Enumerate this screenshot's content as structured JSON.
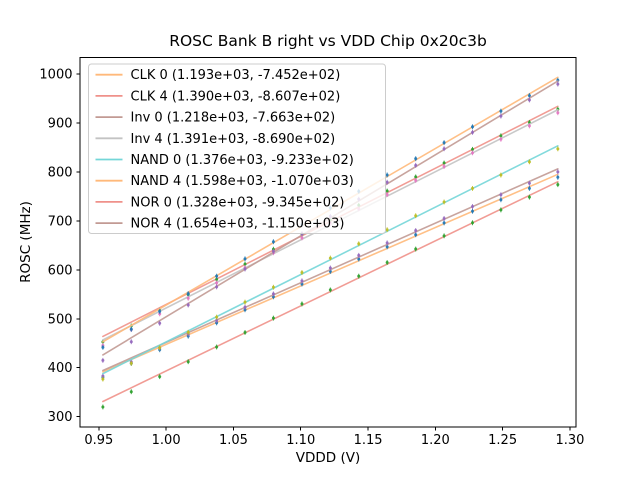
{
  "figure": {
    "background": "#ffffff",
    "text_color": "#000000",
    "spine_color": "#000000"
  },
  "chart_data": {
    "type": "scatter",
    "title": "ROSC Bank B right vs VDD Chip 0x20c3b",
    "xlabel": "VDDD (V)",
    "ylabel": "ROSC (MHz)",
    "xlim": [
      0.936,
      1.3045
    ],
    "ylim": [
      279,
      1033.5
    ],
    "xticks": [
      0.95,
      1.0,
      1.05,
      1.1,
      1.15,
      1.2,
      1.25,
      1.3
    ],
    "xticklabels": [
      "0.95",
      "1.00",
      "1.05",
      "1.10",
      "1.15",
      "1.20",
      "1.25",
      "1.30"
    ],
    "yticks": [
      300,
      400,
      500,
      600,
      700,
      800,
      900,
      1000
    ],
    "yticklabels": [
      "300",
      "400",
      "500",
      "600",
      "700",
      "800",
      "900",
      "1000"
    ],
    "grid": false,
    "x_points": [
      0.953,
      0.9741,
      0.9952,
      1.0164,
      1.0375,
      1.0586,
      1.0797,
      1.1009,
      1.122,
      1.1431,
      1.1642,
      1.1854,
      1.2065,
      1.2276,
      1.2487,
      1.2699,
      1.291
    ],
    "error_bar_mhz": 5,
    "fit_residual": {
      "peak_mhz": 3.5,
      "curvature_mhz_per_v2": 420,
      "center_v": 1.14
    },
    "legend": {
      "position": "upper left",
      "border_color": "#cccccc",
      "background": "#ffffff"
    },
    "series": [
      {
        "name": "CLK 0",
        "label": "CLK 0 (1.193e+03, -7.452e+02)",
        "fit_slope_mhz_per_v": 1193.0,
        "fit_intercept_mhz": -745.2,
        "line_color": "#ffb97a",
        "marker_color": "#1f77b4"
      },
      {
        "name": "CLK 4",
        "label": "CLK 4 (1.390e+03, -8.607e+02)",
        "fit_slope_mhz_per_v": 1390.0,
        "fit_intercept_mhz": -860.7,
        "line_color": "#ef918a",
        "marker_color": "#2ca02c"
      },
      {
        "name": "Inv 0",
        "label": "Inv 0 (1.218e+03, -7.663e+02)",
        "fit_slope_mhz_per_v": 1218.0,
        "fit_intercept_mhz": -766.3,
        "line_color": "#c29a93",
        "marker_color": "#9467bd"
      },
      {
        "name": "Inv 4",
        "label": "Inv 4 (1.391e+03, -8.690e+02)",
        "fit_slope_mhz_per_v": 1391.0,
        "fit_intercept_mhz": -869.0,
        "line_color": "#c3c3c3",
        "marker_color": "#e377c2"
      },
      {
        "name": "NAND 0",
        "label": "NAND 0 (1.376e+03, -9.233e+02)",
        "fit_slope_mhz_per_v": 1376.0,
        "fit_intercept_mhz": -923.3,
        "line_color": "#74d6d8",
        "marker_color": "#bcbd22"
      },
      {
        "name": "NAND 4",
        "label": "NAND 4 (1.598e+03, -1.070e+03)",
        "fit_slope_mhz_per_v": 1598.0,
        "fit_intercept_mhz": -1070.0,
        "line_color": "#ffb97a",
        "marker_color": "#1f77b4"
      },
      {
        "name": "NOR 0",
        "label": "NOR 0 (1.328e+03, -9.345e+02)",
        "fit_slope_mhz_per_v": 1328.0,
        "fit_intercept_mhz": -934.5,
        "line_color": "#ef918a",
        "marker_color": "#2ca02c"
      },
      {
        "name": "NOR 4",
        "label": "NOR 4 (1.654e+03, -1.150e+03)",
        "fit_slope_mhz_per_v": 1654.0,
        "fit_intercept_mhz": -1150.0,
        "line_color": "#c29a93",
        "marker_color": "#9467bd"
      }
    ]
  }
}
